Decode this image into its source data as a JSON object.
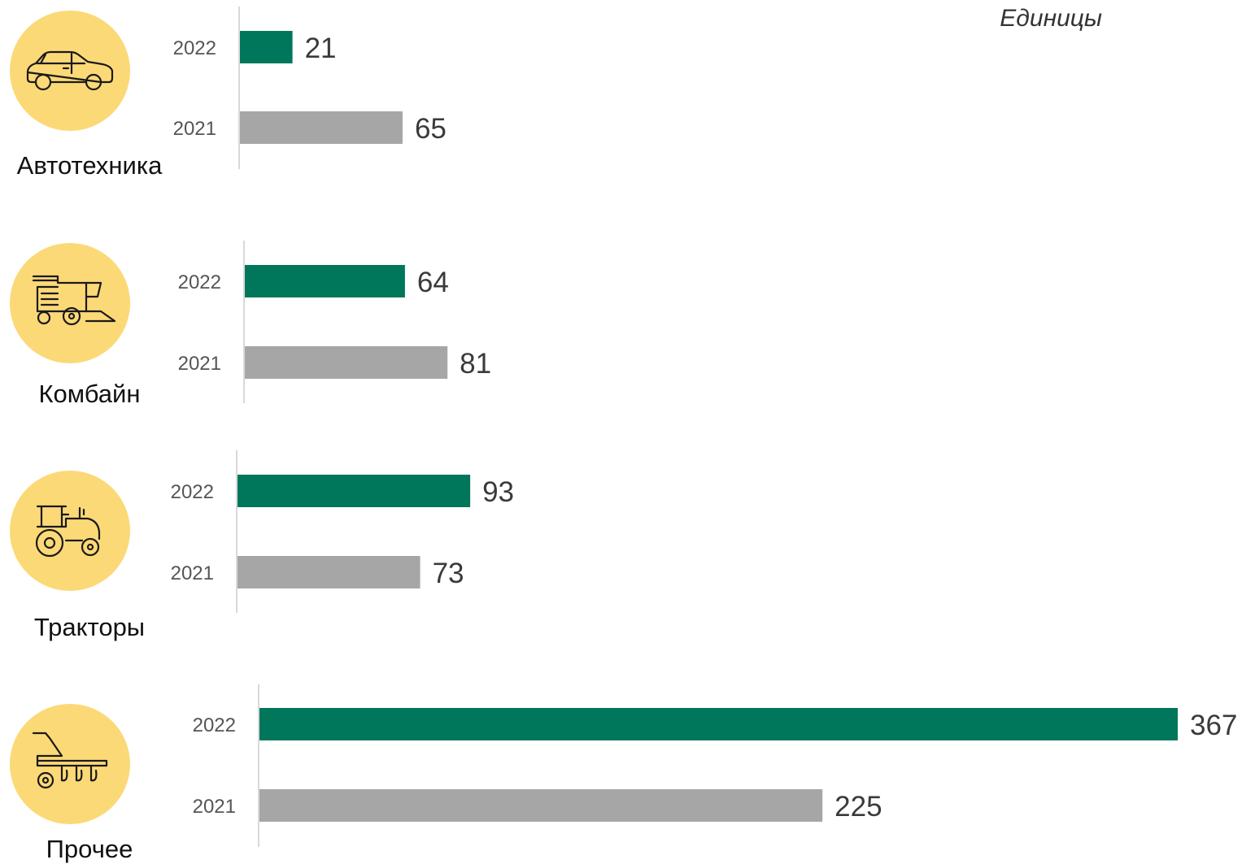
{
  "unit_label": "Единицы",
  "colors": {
    "y2022": "#00775a",
    "y2021": "#a6a6a6",
    "icon_circle": "#fcd977",
    "axis": "#d9d9d9"
  },
  "chart_data": {
    "type": "bar",
    "orientation": "horizontal",
    "unit": "Единицы",
    "groups": [
      {
        "category": "Автотехника",
        "icon": "car-icon",
        "bars": [
          {
            "year": "2022",
            "value": 21
          },
          {
            "year": "2021",
            "value": 65
          }
        ]
      },
      {
        "category": "Комбайн",
        "icon": "combine-harvester-icon",
        "bars": [
          {
            "year": "2022",
            "value": 64
          },
          {
            "year": "2021",
            "value": 81
          }
        ]
      },
      {
        "category": "Тракторы",
        "icon": "tractor-icon",
        "bars": [
          {
            "year": "2022",
            "value": 93
          },
          {
            "year": "2021",
            "value": 73
          }
        ]
      },
      {
        "category": "Прочее",
        "icon": "seeder-icon",
        "bars": [
          {
            "year": "2022",
            "value": 367
          },
          {
            "year": "2021",
            "value": 225
          }
        ]
      }
    ]
  }
}
